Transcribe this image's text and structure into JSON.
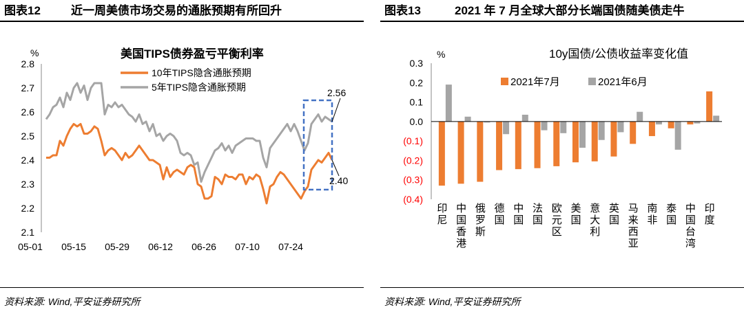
{
  "panels": [
    {
      "figure_number": "图表12",
      "header_title": "近一周美债市场交易的通胀预期有所回升",
      "source": "资料来源: Wind,平安证券研究所"
    },
    {
      "figure_number": "图表13",
      "header_title": "2021 年 7 月全球大部分长端国债随美债走牛",
      "source": "资料来源: Wind,平安证券研究所"
    }
  ],
  "colors": {
    "orange": "#ED7D31",
    "gray": "#A5A5A5",
    "blue": "#4472C4",
    "red": "#FF0000"
  },
  "chart_data": [
    {
      "type": "line",
      "title": "美国TIPS债券盈亏平衡利率",
      "ylabel": "%",
      "ylim": [
        2.1,
        2.8
      ],
      "yticks": [
        "2.1",
        "2.2",
        "2.3",
        "2.4",
        "2.5",
        "2.6",
        "2.7",
        "2.8"
      ],
      "xticks": [
        "05-01",
        "05-15",
        "05-29",
        "06-12",
        "06-26",
        "07-10",
        "07-24"
      ],
      "legend": "top",
      "series": [
        {
          "name": "10年TIPS隐含通胀预期",
          "color": "#ED7D31",
          "values": [
            2.41,
            2.41,
            2.42,
            2.42,
            2.48,
            2.46,
            2.5,
            2.53,
            2.55,
            2.54,
            2.55,
            2.51,
            2.51,
            2.52,
            2.54,
            2.53,
            2.48,
            2.42,
            2.44,
            2.45,
            2.44,
            2.42,
            2.4,
            2.43,
            2.41,
            2.42,
            2.44,
            2.46,
            2.44,
            2.42,
            2.4,
            2.4,
            2.39,
            2.38,
            2.32,
            2.37,
            2.33,
            2.35,
            2.36,
            2.35,
            2.34,
            2.37,
            2.38,
            2.37,
            2.3,
            2.29,
            2.24,
            2.24,
            2.25,
            2.33,
            2.32,
            2.3,
            2.34,
            2.33,
            2.33,
            2.32,
            2.34,
            2.34,
            2.3,
            2.33,
            2.32,
            2.34,
            2.33,
            2.28,
            2.22,
            2.29,
            2.3,
            2.33,
            2.35,
            2.34,
            2.32,
            2.3,
            2.28,
            2.26,
            2.24,
            2.27,
            2.29,
            2.36,
            2.38,
            2.4,
            2.39,
            2.41,
            2.43,
            2.4
          ]
        },
        {
          "name": "5年TIPS隐含通胀预期",
          "color": "#A5A5A5",
          "values": [
            2.57,
            2.59,
            2.62,
            2.63,
            2.66,
            2.62,
            2.68,
            2.65,
            2.7,
            2.72,
            2.68,
            2.71,
            2.65,
            2.7,
            2.72,
            2.72,
            2.72,
            2.59,
            2.63,
            2.62,
            2.64,
            2.62,
            2.63,
            2.61,
            2.59,
            2.58,
            2.56,
            2.59,
            2.55,
            2.56,
            2.52,
            2.55,
            2.5,
            2.51,
            2.48,
            2.5,
            2.51,
            2.5,
            2.48,
            2.43,
            2.42,
            2.43,
            2.42,
            2.38,
            2.39,
            2.31,
            2.35,
            2.38,
            2.41,
            2.44,
            2.45,
            2.47,
            2.44,
            2.46,
            2.43,
            2.46,
            2.47,
            2.48,
            2.49,
            2.49,
            2.49,
            2.48,
            2.48,
            2.41,
            2.37,
            2.45,
            2.47,
            2.49,
            2.51,
            2.53,
            2.55,
            2.52,
            2.55,
            2.52,
            2.48,
            2.44,
            2.47,
            2.55,
            2.57,
            2.59,
            2.56,
            2.58,
            2.57,
            2.56
          ]
        }
      ],
      "annotations": [
        {
          "label": "2.56",
          "series": 1,
          "index": 83
        },
        {
          "label": "2.40",
          "series": 0,
          "index": 83
        }
      ],
      "highlight_box": {
        "from_index": 76,
        "to_index": 83
      }
    },
    {
      "type": "bar",
      "title": "10y国债/公债收益率变化值",
      "ylabel": "%",
      "ylim": [
        -0.4,
        0.3
      ],
      "yticks": [
        "0.3",
        "0.2",
        "0.1",
        "0.0",
        "(0.1)",
        "(0.2)",
        "(0.3)",
        "(0.4)"
      ],
      "categories": [
        "印尼",
        "中国香港",
        "俄罗斯",
        "德国",
        "中国",
        "法国",
        "欧元区",
        "美国",
        "意大利",
        "英国",
        "马来西亚",
        "南非",
        "泰国",
        "中国台湾",
        "印度"
      ],
      "legend": "top",
      "series": [
        {
          "name": "2021年7月",
          "color": "#ED7D31",
          "values": [
            -0.33,
            -0.32,
            -0.31,
            -0.25,
            -0.245,
            -0.24,
            -0.23,
            -0.21,
            -0.205,
            -0.18,
            -0.115,
            -0.075,
            -0.035,
            -0.015,
            0.155
          ]
        },
        {
          "name": "2021年6月",
          "color": "#A5A5A5",
          "values": [
            0.19,
            0.025,
            -0.005,
            -0.065,
            0.035,
            -0.045,
            -0.06,
            -0.135,
            -0.095,
            -0.055,
            0.05,
            -0.015,
            -0.145,
            -0.01,
            0.03
          ]
        }
      ]
    }
  ]
}
